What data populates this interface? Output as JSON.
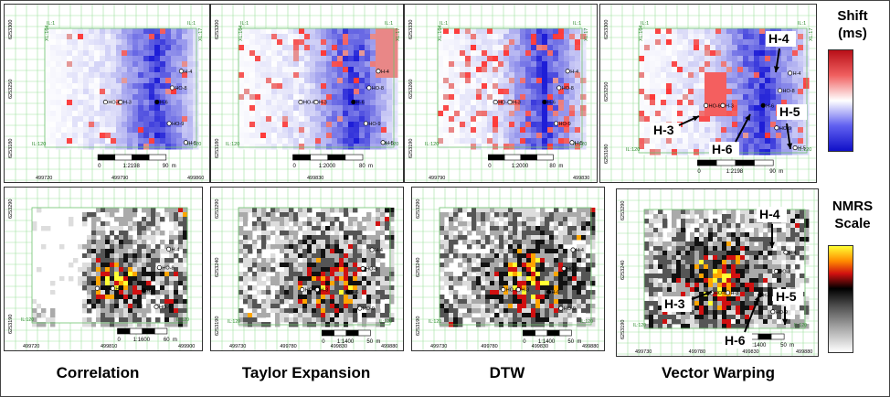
{
  "legends": {
    "shift": {
      "title": "Shift",
      "unit": "(ms)",
      "colors": [
        "#c0141a",
        "#ffffff",
        "#1414c8"
      ]
    },
    "nmrs": {
      "title": "NMRS",
      "subtitle": "Scale",
      "colors": [
        "#ffff33",
        "#ff8c00",
        "#d01010",
        "#000000",
        "#888888",
        "#ffffff"
      ]
    }
  },
  "bottom_labels": [
    "Correlation",
    "Taylor Expansion",
    "DTW",
    "Vector Warping"
  ],
  "top_panels": [
    {
      "scale_text": "1:2198",
      "scale_start": "0",
      "scale_end": "90",
      "scale_unit": "m",
      "x_ticks": [
        "499720",
        "499790",
        "499860"
      ],
      "y_ticks": [
        "6253300",
        "6253250",
        "6253180"
      ],
      "xl_top": "XL:164",
      "xl_top_right": "XL:17",
      "il_top": "IL:1",
      "il_top_right": "IL:1",
      "il_bottom": "IL:120",
      "il_bottom_right": "IL:120"
    },
    {
      "scale_text": "1:2000",
      "scale_start": "0",
      "scale_end": "80",
      "scale_unit": "m",
      "x_ticks": [
        "499830"
      ],
      "y_ticks": [
        "6253200",
        "6253180"
      ],
      "xl_top": "XL:164",
      "xl_top_right": "XL:17",
      "il_top": "IL:1",
      "il_top_right": "IL:1",
      "il_bottom": "IL:120",
      "il_bottom_right": "IL:120"
    },
    {
      "scale_text": "1:2000",
      "scale_start": "0",
      "scale_end": "80",
      "scale_unit": "m",
      "x_ticks": [
        "499790",
        "499830"
      ],
      "y_ticks": [
        "6253330",
        "6253260",
        "6253190"
      ],
      "xl_top": "XL:164",
      "xl_top_right": "XL:17",
      "il_top": "IL:1",
      "il_top_right": "IL:1",
      "il_bottom": "IL:120",
      "il_bottom_right": "IL:120"
    },
    {
      "scale_text": "1:2198",
      "scale_start": "0",
      "scale_end": "90",
      "scale_unit": "m",
      "x_ticks": [],
      "y_ticks": [
        "6253300",
        "6253250",
        "6253180"
      ],
      "xl_top": "XL:164",
      "xl_top_right": "XL:17",
      "il_top": "IL:1",
      "il_top_right": "IL:1",
      "il_bottom": "IL:120",
      "il_bottom_right": "IL:120"
    }
  ],
  "bottom_panels": [
    {
      "scale_text": "1:1600",
      "scale_start": "0",
      "scale_end": "60",
      "scale_unit": "m",
      "x_ticks": [
        "499720",
        "499810",
        "499900"
      ],
      "y_ticks": [
        "6253290",
        "6253190"
      ],
      "il_bottom": "IL:120",
      "il_bottom_right": "IL:120"
    },
    {
      "scale_text": "1:1400",
      "scale_start": "0",
      "scale_end": "50",
      "scale_unit": "m",
      "x_ticks": [
        "499730",
        "499780",
        "499830",
        "499880"
      ],
      "y_ticks": [
        "6253290",
        "6253240",
        "6253190"
      ],
      "il_bottom": "IL:120",
      "il_bottom_right": "IL:120"
    },
    {
      "scale_text": "1:1400",
      "scale_start": "0",
      "scale_end": "50",
      "scale_unit": "m",
      "x_ticks": [
        "499730",
        "499780",
        "499830",
        "499880"
      ],
      "y_ticks": [
        "6253290",
        "6253240",
        "6253190"
      ],
      "il_bottom": "IL:120",
      "il_bottom_right": "IL:120"
    },
    {
      "scale_text": "1:1400",
      "scale_start": "0",
      "scale_end": "50",
      "scale_unit": "m",
      "x_ticks": [
        "499730",
        "499780",
        "499830",
        "499880"
      ],
      "y_ticks": [
        "6253290",
        "6253240",
        "6253190"
      ],
      "il_bottom": "IL:120",
      "il_bottom_right": "IL:120"
    }
  ],
  "wells": [
    "HO-6",
    "H-3",
    "H-6",
    "HO-9",
    "H-4",
    "HO-8",
    "H-5"
  ],
  "annotations": {
    "H4": "H-4",
    "H3": "H-3",
    "H6": "H-6",
    "H5": "H-5"
  }
}
